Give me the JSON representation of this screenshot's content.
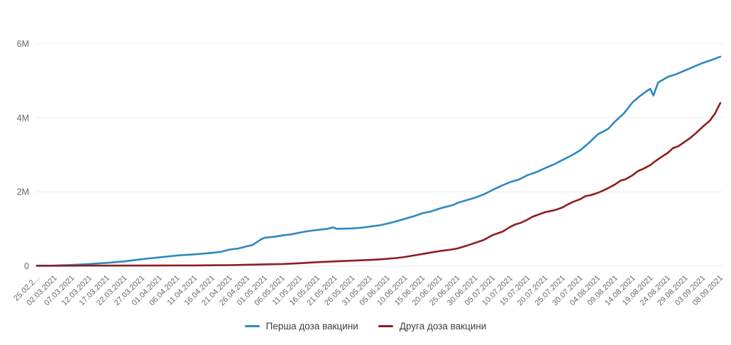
{
  "chart_data": {
    "type": "line",
    "title": "",
    "xlabel": "",
    "ylabel": "",
    "y_unit": "M",
    "ylim": [
      0,
      6
    ],
    "grid": "horizontal",
    "legend_position": "bottom",
    "y_ticks": [
      {
        "value": 0,
        "label": "0"
      },
      {
        "value": 2,
        "label": "2M"
      },
      {
        "value": 4,
        "label": "4M"
      },
      {
        "value": 6,
        "label": "6M"
      }
    ],
    "x_tick_labels": [
      "25.02.2...",
      "02.03.2021",
      "07.03.2021",
      "12.03.2021",
      "17.03.2021",
      "22.03.2021",
      "27.03.2021",
      "01.04.2021",
      "06.04.2021",
      "11.04.2021",
      "16.04.2021",
      "21.04.2021",
      "26.04.2021",
      "01.05.2021",
      "06.05.2021",
      "11.05.2021",
      "16.05.2021",
      "21.05.2021",
      "26.05.2021",
      "31.05.2021",
      "05.06.2021",
      "10.06.2021",
      "15.06.2021",
      "20.06.2021",
      "25.06.2021",
      "30.06.2021",
      "05.07.2021",
      "10.07.2021",
      "15.07.2021",
      "20.07.2021",
      "25.07.2021",
      "30.07.2021",
      "04.08.2021",
      "09.08.2021",
      "14.08.2021",
      "19.08.2021",
      "24.08.2021",
      "29.08.2021",
      "03.09.2021",
      "08.09.2021"
    ],
    "series": [
      {
        "name": "Перша доза вакцини",
        "color": "#2d89c0",
        "unit": "M",
        "points": [
          [
            0,
            0.005
          ],
          [
            1,
            0.01
          ],
          [
            2,
            0.025
          ],
          [
            3,
            0.05
          ],
          [
            4,
            0.08
          ],
          [
            5,
            0.12
          ],
          [
            6,
            0.18
          ],
          [
            7,
            0.23
          ],
          [
            8,
            0.28
          ],
          [
            9,
            0.31
          ],
          [
            10,
            0.35
          ],
          [
            10.5,
            0.38
          ],
          [
            11,
            0.44
          ],
          [
            11.5,
            0.47
          ],
          [
            12,
            0.53
          ],
          [
            12.3,
            0.56
          ],
          [
            12.8,
            0.72
          ],
          [
            13,
            0.76
          ],
          [
            13.6,
            0.79
          ],
          [
            14,
            0.82
          ],
          [
            14.5,
            0.85
          ],
          [
            15,
            0.9
          ],
          [
            15.5,
            0.94
          ],
          [
            16,
            0.97
          ],
          [
            16.6,
            1.0
          ],
          [
            16.9,
            1.04
          ],
          [
            17.1,
            1.0
          ],
          [
            18,
            1.01
          ],
          [
            18.5,
            1.03
          ],
          [
            19,
            1.06
          ],
          [
            19.5,
            1.09
          ],
          [
            20,
            1.14
          ],
          [
            20.5,
            1.2
          ],
          [
            21,
            1.27
          ],
          [
            21.5,
            1.34
          ],
          [
            22,
            1.42
          ],
          [
            22.5,
            1.47
          ],
          [
            23,
            1.55
          ],
          [
            23.8,
            1.65
          ],
          [
            24,
            1.7
          ],
          [
            25,
            1.84
          ],
          [
            25.5,
            1.93
          ],
          [
            26,
            2.05
          ],
          [
            26.5,
            2.16
          ],
          [
            27,
            2.26
          ],
          [
            27.5,
            2.33
          ],
          [
            28,
            2.45
          ],
          [
            28.5,
            2.53
          ],
          [
            29,
            2.64
          ],
          [
            29.5,
            2.74
          ],
          [
            30,
            2.86
          ],
          [
            30.5,
            2.98
          ],
          [
            31,
            3.12
          ],
          [
            31.5,
            3.32
          ],
          [
            32,
            3.55
          ],
          [
            32.6,
            3.7
          ],
          [
            33,
            3.9
          ],
          [
            33.5,
            4.12
          ],
          [
            34,
            4.42
          ],
          [
            34.4,
            4.58
          ],
          [
            34.8,
            4.72
          ],
          [
            35,
            4.78
          ],
          [
            35.18,
            4.6
          ],
          [
            35.45,
            4.95
          ],
          [
            36,
            5.1
          ],
          [
            36.5,
            5.18
          ],
          [
            37,
            5.28
          ],
          [
            37.5,
            5.38
          ],
          [
            38,
            5.48
          ],
          [
            38.5,
            5.56
          ],
          [
            39,
            5.65
          ]
        ]
      },
      {
        "name": "Друга доза вакцини",
        "color": "#8f1d21",
        "unit": "M",
        "points": [
          [
            0,
            0
          ],
          [
            3,
            0.005
          ],
          [
            6,
            0.008
          ],
          [
            9,
            0.012
          ],
          [
            10,
            0.015
          ],
          [
            11,
            0.02
          ],
          [
            12,
            0.03
          ],
          [
            13,
            0.04
          ],
          [
            14,
            0.05
          ],
          [
            15,
            0.07
          ],
          [
            15.5,
            0.085
          ],
          [
            16,
            0.1
          ],
          [
            16.5,
            0.11
          ],
          [
            17,
            0.12
          ],
          [
            17.5,
            0.13
          ],
          [
            18,
            0.14
          ],
          [
            19,
            0.16
          ],
          [
            19.5,
            0.175
          ],
          [
            20,
            0.19
          ],
          [
            20.5,
            0.21
          ],
          [
            21,
            0.24
          ],
          [
            21.5,
            0.28
          ],
          [
            22,
            0.32
          ],
          [
            22.5,
            0.36
          ],
          [
            23,
            0.4
          ],
          [
            23.5,
            0.43
          ],
          [
            24,
            0.47
          ],
          [
            24.5,
            0.54
          ],
          [
            25,
            0.62
          ],
          [
            25.5,
            0.7
          ],
          [
            26,
            0.83
          ],
          [
            26.3,
            0.88
          ],
          [
            26.6,
            0.93
          ],
          [
            27,
            1.05
          ],
          [
            27.3,
            1.12
          ],
          [
            27.6,
            1.16
          ],
          [
            28,
            1.25
          ],
          [
            28.3,
            1.33
          ],
          [
            28.6,
            1.38
          ],
          [
            29,
            1.45
          ],
          [
            29.3,
            1.48
          ],
          [
            29.6,
            1.51
          ],
          [
            30,
            1.58
          ],
          [
            30.3,
            1.66
          ],
          [
            30.6,
            1.73
          ],
          [
            31,
            1.8
          ],
          [
            31.3,
            1.88
          ],
          [
            31.6,
            1.91
          ],
          [
            32,
            1.97
          ],
          [
            32.3,
            2.03
          ],
          [
            32.6,
            2.1
          ],
          [
            33,
            2.2
          ],
          [
            33.3,
            2.3
          ],
          [
            33.6,
            2.34
          ],
          [
            34,
            2.45
          ],
          [
            34.3,
            2.56
          ],
          [
            34.6,
            2.62
          ],
          [
            35,
            2.72
          ],
          [
            35.3,
            2.83
          ],
          [
            35.6,
            2.93
          ],
          [
            36,
            3.05
          ],
          [
            36.3,
            3.18
          ],
          [
            36.6,
            3.23
          ],
          [
            37,
            3.36
          ],
          [
            37.3,
            3.46
          ],
          [
            37.6,
            3.58
          ],
          [
            38,
            3.76
          ],
          [
            38.4,
            3.92
          ],
          [
            38.7,
            4.12
          ],
          [
            39,
            4.4
          ]
        ]
      }
    ]
  },
  "colors": {
    "background": "#ffffff",
    "grid": "#ebebeb",
    "axis_label": "#66696d",
    "legend_text": "#3c3f43"
  }
}
